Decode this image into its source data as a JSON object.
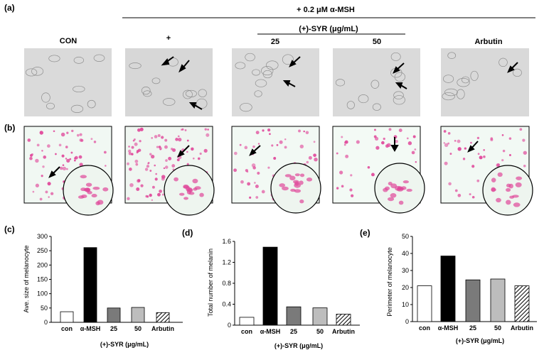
{
  "panel_labels": {
    "a": "(a)",
    "b": "(b)",
    "c": "(c)",
    "d": "(d)",
    "e": "(e)"
  },
  "header": {
    "treatment": "+ 0.2 μM α-MSH",
    "syr_group": "(+)-SYR (μg/mL)",
    "columns": [
      "CON",
      "+",
      "25",
      "50",
      "Arbutin"
    ]
  },
  "photos": {
    "row_a_style": "grayscale bright-field micrographs",
    "row_b_style": "pink stained cells with circular magnified inset",
    "colors": {
      "bg_a": "#d9d9d9",
      "bg_b": "#f3fbf5",
      "stain": "#e0479a"
    }
  },
  "chart_data": [
    {
      "type": "bar",
      "ylabel": "Ave. size of  melanocyte",
      "xlabel": "(+)-SYR (μg/mL)",
      "categories": [
        "con",
        "α-MSH",
        "25",
        "50",
        "Arbutin"
      ],
      "values": [
        37,
        261,
        50,
        52,
        34
      ],
      "ylim": [
        0,
        300
      ],
      "yticks": [
        "0",
        "50",
        "100",
        "150",
        "200",
        "250",
        "300"
      ],
      "fills": [
        "#ffffff",
        "#000000",
        "#7a7a7a",
        "#bdbdbd",
        "hatch"
      ]
    },
    {
      "type": "bar",
      "ylabel": "Total number of melanin",
      "xlabel": "(+)-SYR (μg/mL)",
      "categories": [
        "con",
        "α-MSH",
        "25",
        "50",
        "Arbutin"
      ],
      "values": [
        0.15,
        1.49,
        0.35,
        0.33,
        0.21
      ],
      "ylim": [
        0,
        1.6
      ],
      "yticks": [
        "0",
        "0.4",
        "0.8",
        "1.2",
        "1.6"
      ],
      "fills": [
        "#ffffff",
        "#000000",
        "#7a7a7a",
        "#bdbdbd",
        "hatch"
      ]
    },
    {
      "type": "bar",
      "ylabel": "Perimeter of melanocyte",
      "xlabel": "(+)-SYR (μg/mL)",
      "categories": [
        "con",
        "α-MSH",
        "25",
        "50",
        "Arbutin"
      ],
      "values": [
        21,
        38.5,
        24.5,
        25,
        21
      ],
      "ylim": [
        0,
        50
      ],
      "yticks": [
        "0",
        "10",
        "20",
        "30",
        "40",
        "50"
      ],
      "fills": [
        "#ffffff",
        "#000000",
        "#7a7a7a",
        "#bdbdbd",
        "hatch"
      ]
    }
  ]
}
